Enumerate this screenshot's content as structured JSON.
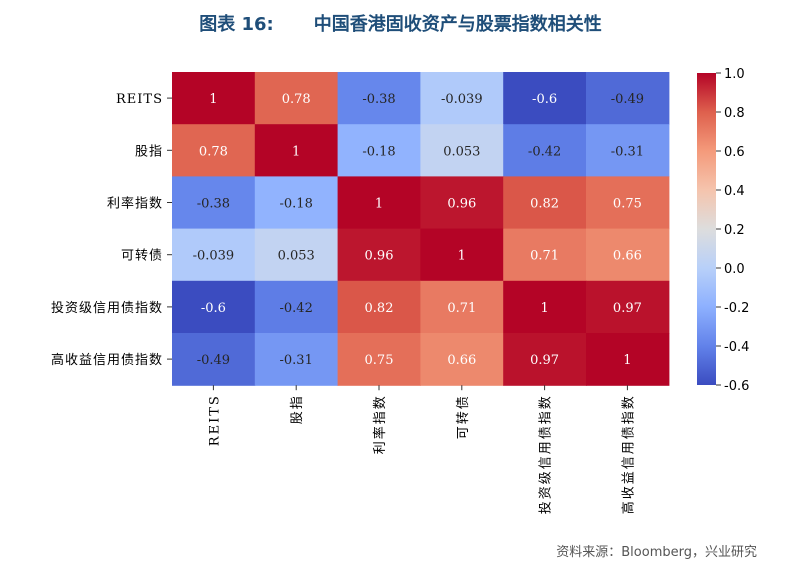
{
  "header": {
    "figure_label": "图表 16:",
    "figure_title": "中国香港固收资产与股票指数相关性"
  },
  "chart_data": {
    "type": "heatmap",
    "categories": [
      "REITS",
      "股指",
      "利率指数",
      "可转债",
      "投资级信用债指数",
      "高收益信用债指数"
    ],
    "matrix": [
      [
        1,
        0.78,
        -0.38,
        -0.039,
        -0.6,
        -0.49
      ],
      [
        0.78,
        1,
        -0.18,
        0.053,
        -0.42,
        -0.31
      ],
      [
        -0.38,
        -0.18,
        1,
        0.96,
        0.82,
        0.75
      ],
      [
        -0.039,
        0.053,
        0.96,
        1,
        0.71,
        0.66
      ],
      [
        -0.6,
        -0.42,
        0.82,
        0.71,
        1,
        0.97
      ],
      [
        -0.49,
        -0.31,
        0.75,
        0.66,
        0.97,
        1
      ]
    ],
    "cell_labels": [
      [
        "1",
        "0.78",
        "-0.38",
        "-0.039",
        "-0.6",
        "-0.49"
      ],
      [
        "0.78",
        "1",
        "-0.18",
        "0.053",
        "-0.42",
        "-0.31"
      ],
      [
        "-0.38",
        "-0.18",
        "1",
        "0.96",
        "0.82",
        "0.75"
      ],
      [
        "-0.039",
        "0.053",
        "0.96",
        "1",
        "0.71",
        "0.66"
      ],
      [
        "-0.6",
        "-0.42",
        "0.82",
        "0.71",
        "1",
        "0.97"
      ],
      [
        "-0.49",
        "-0.31",
        "0.75",
        "0.66",
        "0.97",
        "1"
      ]
    ],
    "colorbar": {
      "range": [
        -0.6,
        1.0
      ],
      "ticks": [
        "1.0",
        "0.8",
        "0.6",
        "0.4",
        "0.2",
        "0.0",
        "-0.2",
        "-0.4",
        "-0.6"
      ],
      "tick_values": [
        1.0,
        0.8,
        0.6,
        0.4,
        0.2,
        0.0,
        -0.2,
        -0.4,
        -0.6
      ]
    },
    "colormap": "coolwarm",
    "colors": {
      "low": "#3b4cc0",
      "mid": "#dddddd",
      "high": "#b40426"
    }
  },
  "footer": {
    "source": "资料来源：Bloomberg，兴业研究"
  }
}
